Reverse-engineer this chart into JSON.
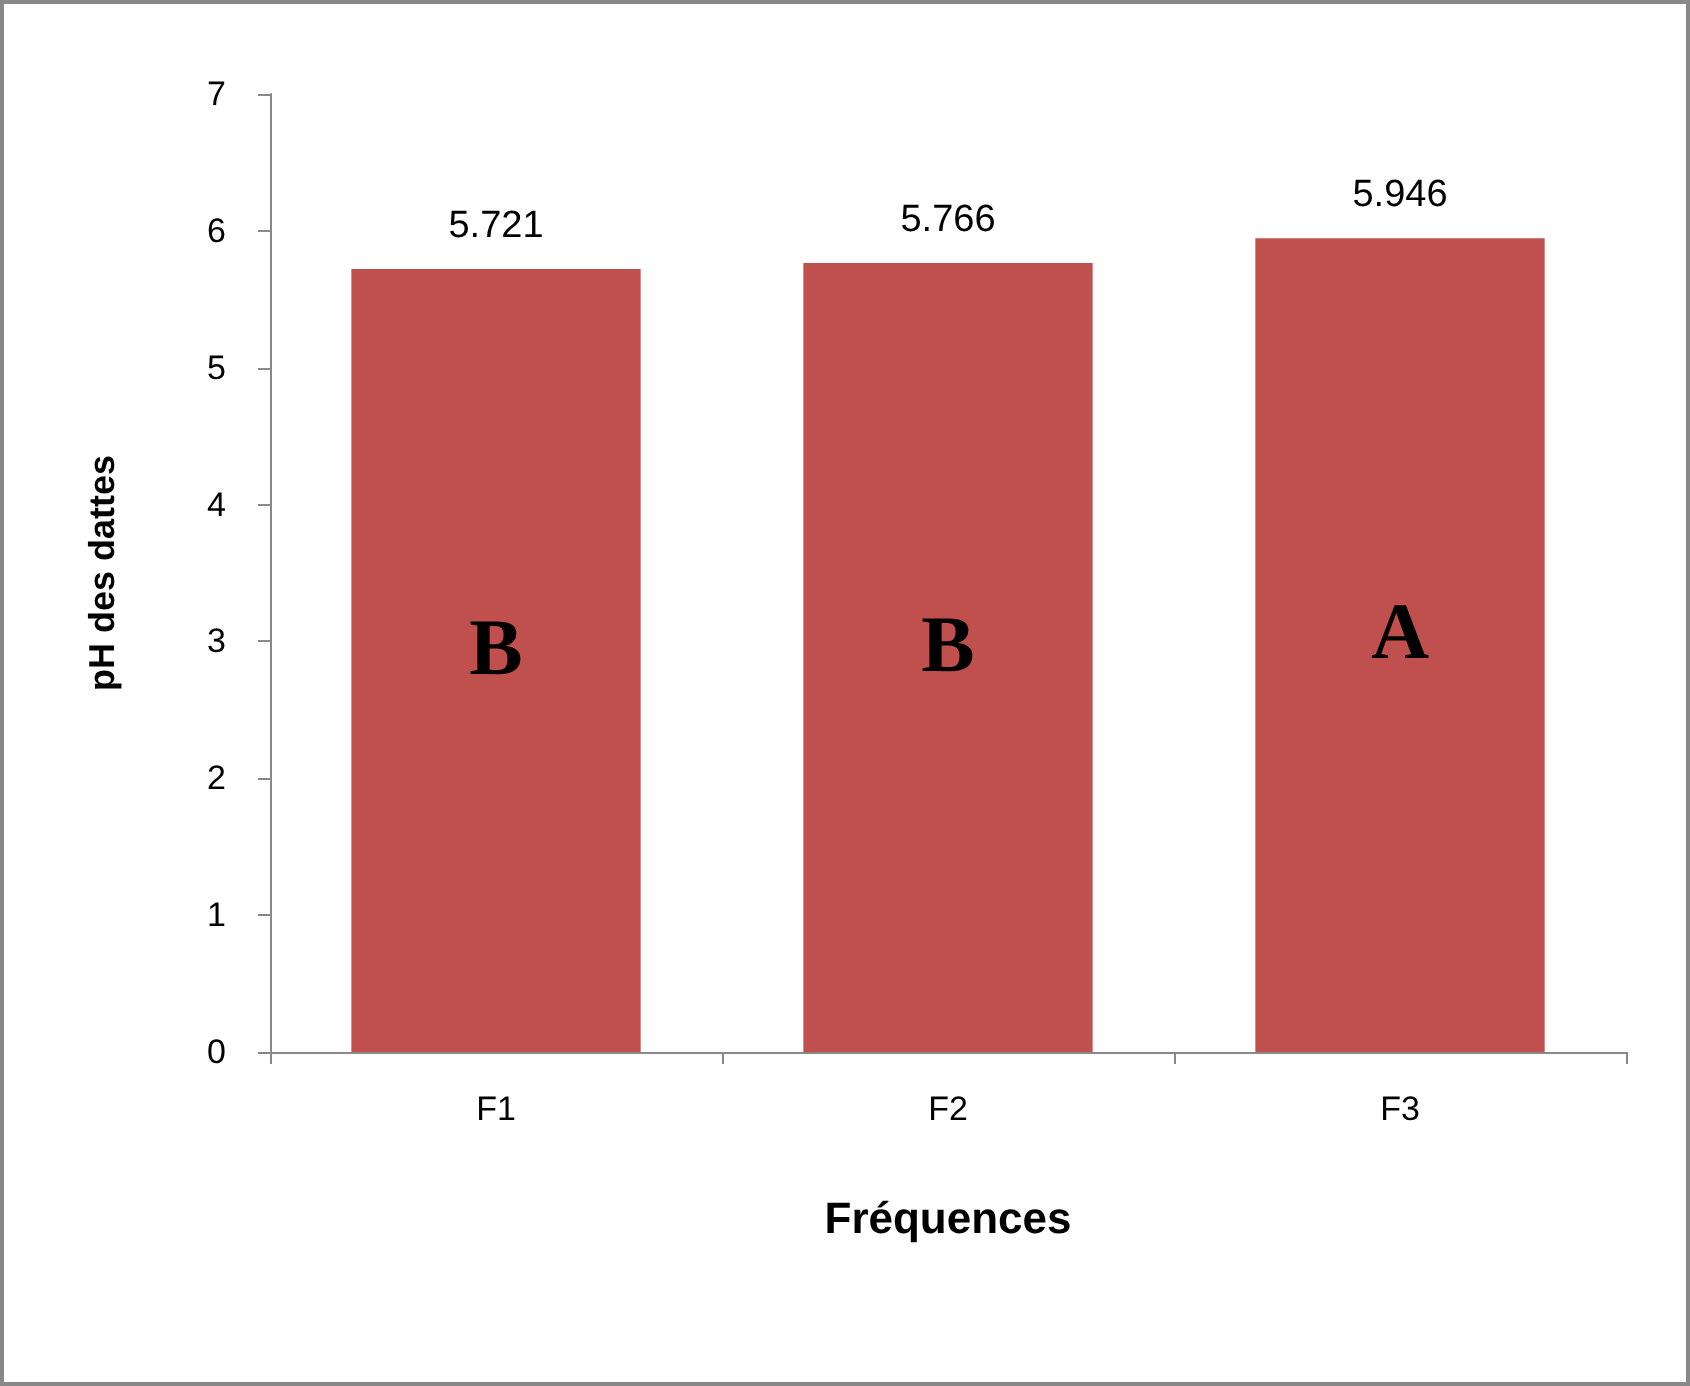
{
  "chart_data": {
    "type": "bar",
    "xlabel": "Fréquences",
    "ylabel": "pH des dattes",
    "categories": [
      "F1",
      "F2",
      "F3"
    ],
    "values": [
      5.721,
      5.766,
      5.946
    ],
    "color": "#c0504d",
    "ylim": [
      0,
      7
    ],
    "yticks": [
      0,
      1,
      2,
      3,
      4,
      5,
      6,
      7
    ],
    "grid": false,
    "data_labels": true,
    "annotations": [
      "B",
      "B",
      "A"
    ]
  }
}
